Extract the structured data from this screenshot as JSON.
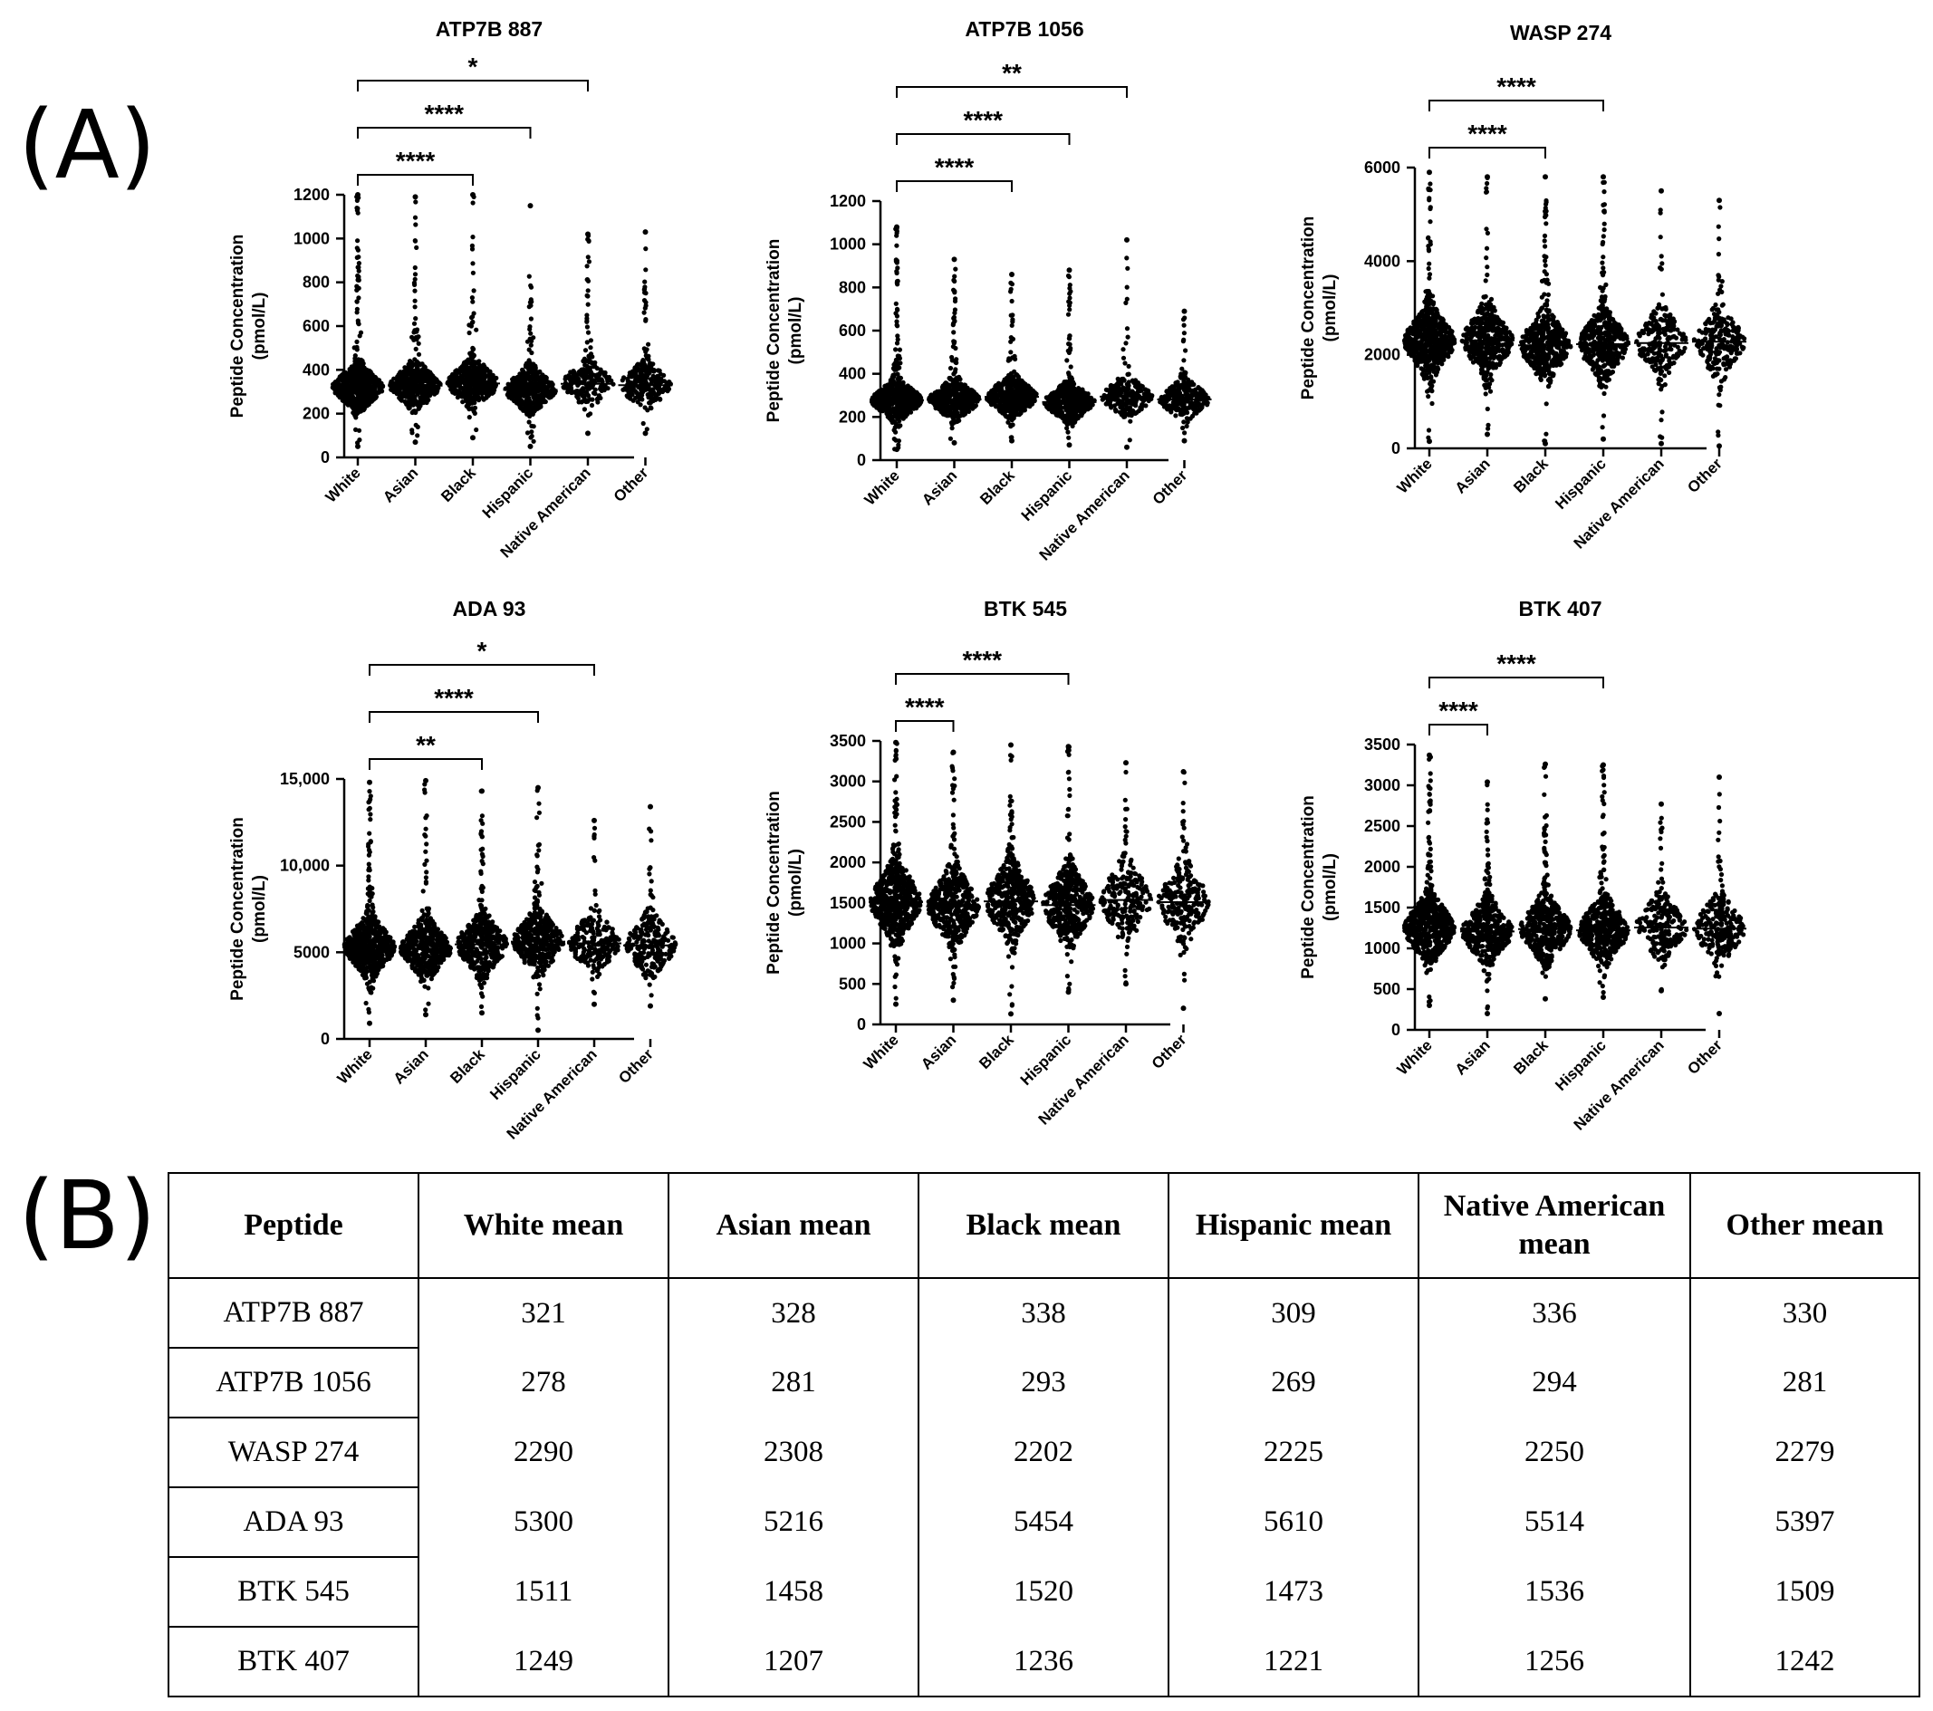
{
  "panels": {
    "a": "(A)",
    "b": "(B)"
  },
  "colors": {
    "ink": "#000000",
    "background": "#ffffff"
  },
  "chart_data": [
    {
      "type": "scatter",
      "subtype": "beeswarm",
      "title": "ATP7B 887",
      "ylabel": [
        "Peptide  Concentration",
        "(pmol/L)"
      ],
      "categories": [
        "White",
        "Asian",
        "Black",
        "Hispanic",
        "Native American",
        "Other"
      ],
      "ylim": [
        0,
        1200
      ],
      "yticks": [
        0,
        200,
        400,
        600,
        800,
        1000,
        1200
      ],
      "ytick_labels": [
        "0",
        "200",
        "400",
        "600",
        "800",
        "1000",
        "1200"
      ],
      "means": [
        321,
        328,
        338,
        309,
        336,
        330
      ],
      "min": [
        50,
        70,
        90,
        50,
        110,
        110
      ],
      "max": [
        1200,
        1190,
        1200,
        1150,
        1020,
        1030
      ],
      "counts": [
        150,
        110,
        110,
        110,
        55,
        60
      ],
      "comparisons": [
        {
          "from": 0,
          "to": 2,
          "label": "****"
        },
        {
          "from": 0,
          "to": 3,
          "label": "****"
        },
        {
          "from": 0,
          "to": 4,
          "label": "*"
        }
      ]
    },
    {
      "type": "scatter",
      "subtype": "beeswarm",
      "title": "ATP7B 1056",
      "ylabel": [
        "Peptide  Concentration",
        "(pmol/L)"
      ],
      "categories": [
        "White",
        "Asian",
        "Black",
        "Hispanic",
        "Native American",
        "Other"
      ],
      "ylim": [
        0,
        1200
      ],
      "yticks": [
        0,
        200,
        400,
        600,
        800,
        1000,
        1200
      ],
      "ytick_labels": [
        "0",
        "200",
        "400",
        "600",
        "800",
        "1000",
        "1200"
      ],
      "means": [
        278,
        281,
        293,
        269,
        294,
        281
      ],
      "min": [
        50,
        80,
        90,
        70,
        60,
        90
      ],
      "max": [
        1080,
        930,
        860,
        880,
        1020,
        690
      ],
      "counts": [
        150,
        110,
        110,
        110,
        55,
        60
      ],
      "comparisons": [
        {
          "from": 0,
          "to": 2,
          "label": "****"
        },
        {
          "from": 0,
          "to": 3,
          "label": "****"
        },
        {
          "from": 0,
          "to": 4,
          "label": "**"
        }
      ]
    },
    {
      "type": "scatter",
      "subtype": "beeswarm",
      "title": "WASP 274",
      "ylabel": [
        "Peptide  Concentration",
        "(pmol/L)"
      ],
      "categories": [
        "White",
        "Asian",
        "Black",
        "Hispanic",
        "Native American",
        "Other"
      ],
      "ylim": [
        0,
        6000
      ],
      "yticks": [
        0,
        2000,
        4000,
        6000
      ],
      "ytick_labels": [
        "0",
        "2000",
        "4000",
        "6000"
      ],
      "means": [
        2290,
        2308,
        2202,
        2225,
        2250,
        2279
      ],
      "min": [
        150,
        300,
        100,
        200,
        100,
        50
      ],
      "max": [
        5900,
        5800,
        5800,
        5800,
        5500,
        5300
      ],
      "counts": [
        150,
        110,
        110,
        110,
        55,
        60
      ],
      "comparisons": [
        {
          "from": 0,
          "to": 2,
          "label": "****"
        },
        {
          "from": 0,
          "to": 3,
          "label": "****"
        }
      ]
    },
    {
      "type": "scatter",
      "subtype": "beeswarm",
      "title": "ADA 93",
      "ylabel": [
        "Peptide  Concentration",
        "(pmol/L)"
      ],
      "categories": [
        "White",
        "Asian",
        "Black",
        "Hispanic",
        "Native American",
        "Other"
      ],
      "ylim": [
        0,
        15000
      ],
      "yticks": [
        0,
        5000,
        10000,
        15000
      ],
      "ytick_labels": [
        "0",
        "5000",
        "10,000",
        "15,000"
      ],
      "means": [
        5300,
        5216,
        5454,
        5610,
        5514,
        5397
      ],
      "min": [
        900,
        1400,
        1500,
        500,
        2000,
        1900
      ],
      "max": [
        14800,
        14900,
        14300,
        14500,
        12600,
        13400
      ],
      "counts": [
        150,
        110,
        110,
        110,
        55,
        60
      ],
      "comparisons": [
        {
          "from": 0,
          "to": 2,
          "label": "**"
        },
        {
          "from": 0,
          "to": 3,
          "label": "****"
        },
        {
          "from": 0,
          "to": 4,
          "label": "*"
        }
      ]
    },
    {
      "type": "scatter",
      "subtype": "beeswarm",
      "title": "BTK 545",
      "ylabel": [
        "Peptide  Concentration",
        "(pmol/L)"
      ],
      "categories": [
        "White",
        "Asian",
        "Black",
        "Hispanic",
        "Native American",
        "Other"
      ],
      "ylim": [
        0,
        3500
      ],
      "yticks": [
        0,
        500,
        1000,
        1500,
        2000,
        2500,
        3000,
        3500
      ],
      "ytick_labels": [
        "0",
        "500",
        "1000",
        "1500",
        "2000",
        "2500",
        "3000",
        "3500"
      ],
      "means": [
        1511,
        1458,
        1520,
        1473,
        1536,
        1509
      ],
      "min": [
        250,
        300,
        130,
        400,
        500,
        200
      ],
      "max": [
        3480,
        3360,
        3450,
        3430,
        3230,
        3120
      ],
      "counts": [
        150,
        110,
        110,
        110,
        55,
        60
      ],
      "comparisons": [
        {
          "from": 0,
          "to": 1,
          "label": "****"
        },
        {
          "from": 0,
          "to": 3,
          "label": "****"
        }
      ]
    },
    {
      "type": "scatter",
      "subtype": "beeswarm",
      "title": "BTK 407",
      "ylabel": [
        "Peptide  Concentration",
        "(pmol/L)"
      ],
      "categories": [
        "White",
        "Asian",
        "Black",
        "Hispanic",
        "Native American",
        "Other"
      ],
      "ylim": [
        0,
        3500
      ],
      "yticks": [
        0,
        500,
        1000,
        1500,
        2000,
        2500,
        3000,
        3500
      ],
      "ytick_labels": [
        "0",
        "500",
        "1000",
        "1500",
        "2000",
        "2500",
        "3000",
        "3500"
      ],
      "means": [
        1249,
        1207,
        1236,
        1221,
        1256,
        1242
      ],
      "min": [
        300,
        200,
        380,
        400,
        480,
        200
      ],
      "max": [
        3370,
        3040,
        3260,
        3250,
        2770,
        3100
      ],
      "counts": [
        150,
        110,
        110,
        110,
        55,
        60
      ],
      "comparisons": [
        {
          "from": 0,
          "to": 1,
          "label": "****"
        },
        {
          "from": 0,
          "to": 3,
          "label": "****"
        }
      ]
    }
  ],
  "table": {
    "headers": [
      "Peptide",
      "White mean",
      "Asian mean",
      "Black mean",
      "Hispanic mean",
      "Native American mean",
      "Other mean"
    ],
    "rows": [
      [
        "ATP7B 887",
        "321",
        "328",
        "338",
        "309",
        "336",
        "330"
      ],
      [
        "ATP7B 1056",
        "278",
        "281",
        "293",
        "269",
        "294",
        "281"
      ],
      [
        "WASP 274",
        "2290",
        "2308",
        "2202",
        "2225",
        "2250",
        "2279"
      ],
      [
        "ADA 93",
        "5300",
        "5216",
        "5454",
        "5610",
        "5514",
        "5397"
      ],
      [
        "BTK 545",
        "1511",
        "1458",
        "1520",
        "1473",
        "1536",
        "1509"
      ],
      [
        "BTK 407",
        "1249",
        "1207",
        "1236",
        "1221",
        "1256",
        "1242"
      ]
    ]
  }
}
